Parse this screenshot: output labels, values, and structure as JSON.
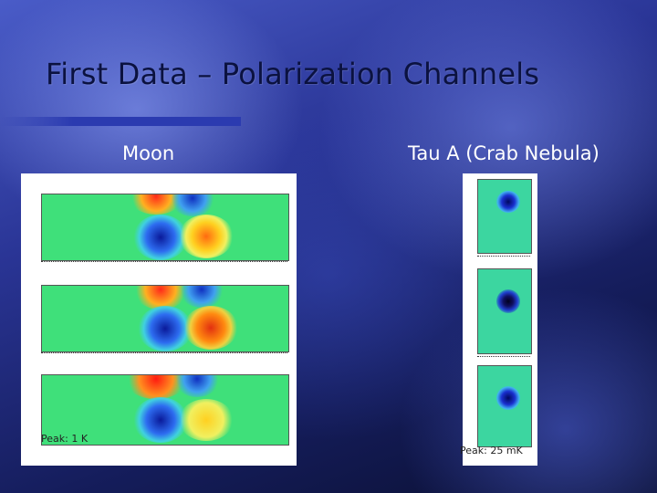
{
  "slide": {
    "title": "First Data – Polarization Channels",
    "moon_label": "Moon",
    "tau_label": "Tau A (Crab Nebula)",
    "moon_peak": "Peak: 1 K",
    "tau_peak": "Peak: 25 mK"
  },
  "colors": {
    "background": "#2a3596",
    "title": "#0b1240",
    "accent_bar": "#2b3bb0",
    "map_field": "#3fe07a"
  }
}
